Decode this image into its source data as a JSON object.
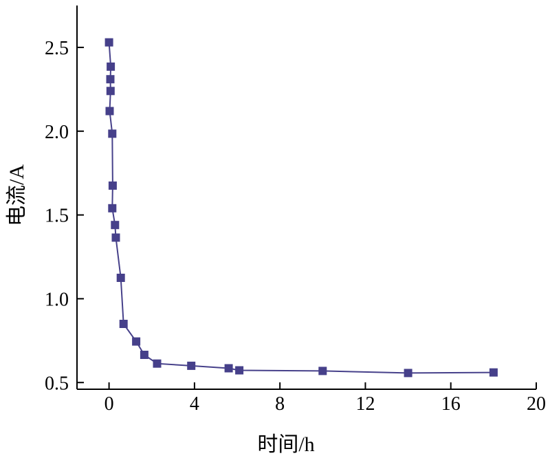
{
  "chart_data": {
    "type": "line",
    "xlabel": "时间/h",
    "ylabel": "电流/A",
    "xlim": [
      -1.5,
      20
    ],
    "ylim": [
      0.46,
      2.75
    ],
    "xticks": [
      0,
      4,
      8,
      12,
      16,
      20
    ],
    "xtick_labels": [
      "0",
      "4",
      "8",
      "12",
      "16",
      "20"
    ],
    "yticks": [
      0.5,
      1.0,
      1.5,
      2.0,
      2.5
    ],
    "ytick_labels": [
      "0.5",
      "1.0",
      "1.5",
      "2.0",
      "2.5"
    ],
    "grid": false,
    "legend": "none",
    "marker": "square",
    "series": [
      {
        "color": "#46408a",
        "x": [
          0.0,
          0.08,
          0.06,
          0.07,
          0.03,
          0.15,
          0.17,
          0.15,
          0.28,
          0.32,
          0.55,
          0.68,
          1.27,
          1.65,
          2.25,
          3.85,
          5.6,
          6.1,
          10.0,
          14.0,
          18.0
        ],
        "y": [
          2.53,
          2.385,
          2.31,
          2.24,
          2.12,
          1.985,
          1.675,
          1.54,
          1.44,
          1.365,
          1.125,
          0.85,
          0.745,
          0.665,
          0.613,
          0.6,
          0.585,
          0.573,
          0.569,
          0.557,
          0.56
        ]
      }
    ]
  }
}
